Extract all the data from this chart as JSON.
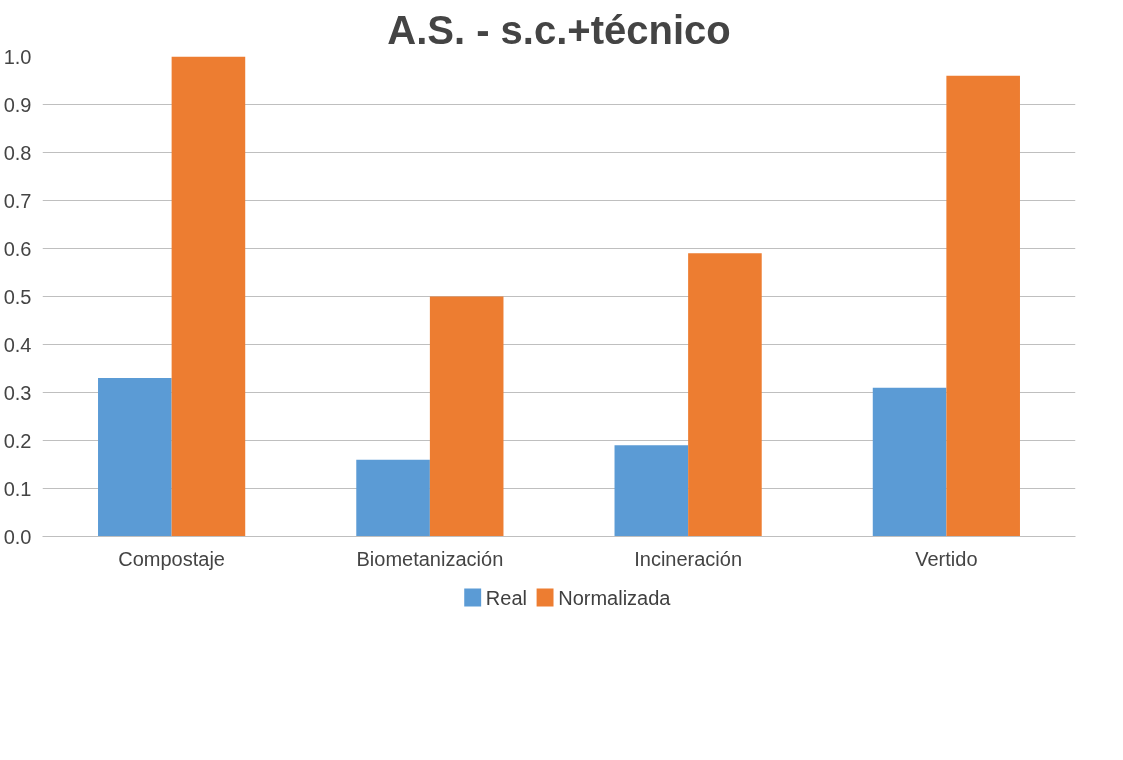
{
  "chart_data": {
    "type": "bar",
    "title": "A.S. - s.c.+técnico",
    "categories": [
      "Compostaje",
      "Biometanización",
      "Incineración",
      "Vertido"
    ],
    "series": [
      {
        "name": "Real",
        "color": "#5b9bd5",
        "values": [
          0.33,
          0.16,
          0.19,
          0.31
        ]
      },
      {
        "name": "Normalizada",
        "color": "#ed7d31",
        "values": [
          1.0,
          0.5,
          0.59,
          0.96
        ]
      }
    ],
    "ylim": [
      0,
      1
    ],
    "yticks": [
      {
        "value": 0,
        "label": "0.0"
      },
      {
        "value": 0.1,
        "label": "0.1"
      },
      {
        "value": 0.2,
        "label": "0.2"
      },
      {
        "value": 0.3,
        "label": "0.3"
      },
      {
        "value": 0.4,
        "label": "0.4"
      },
      {
        "value": 0.5,
        "label": "0.5"
      },
      {
        "value": 0.6,
        "label": "0.6"
      },
      {
        "value": 0.7,
        "label": "0.7"
      },
      {
        "value": 0.8,
        "label": "0.8"
      },
      {
        "value": 0.9,
        "label": "0.9"
      },
      {
        "value": 1,
        "label": "1.0"
      }
    ],
    "grid": "y",
    "legend": "bottom"
  }
}
